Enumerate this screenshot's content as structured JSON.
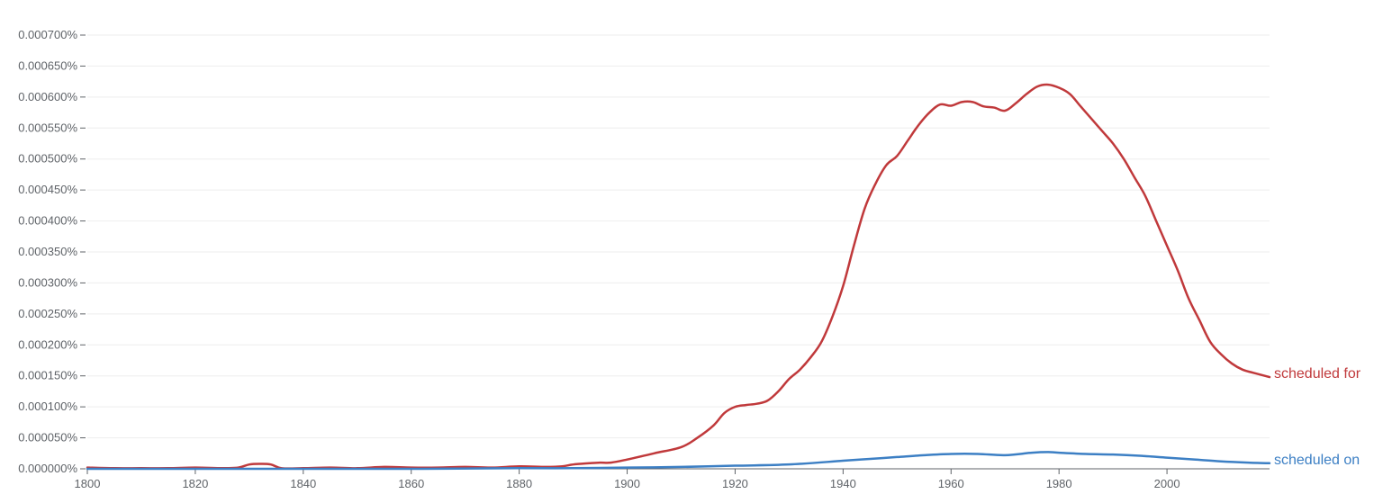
{
  "chart_data": {
    "type": "line",
    "title": "",
    "xlabel": "",
    "ylabel": "",
    "xlim": [
      1800,
      2019
    ],
    "ylim": [
      0,
      0.0007
    ],
    "grid": true,
    "x_ticks": [
      1800,
      1820,
      1840,
      1860,
      1880,
      1900,
      1920,
      1940,
      1960,
      1980,
      2000
    ],
    "x_tick_labels": [
      "1800",
      "1820",
      "1840",
      "1860",
      "1880",
      "1900",
      "1920",
      "1940",
      "1960",
      "1980",
      "2000"
    ],
    "y_ticks": [
      0,
      5e-05,
      0.0001,
      0.00015,
      0.0002,
      0.00025,
      0.0003,
      0.00035,
      0.0004,
      0.00045,
      0.0005,
      0.00055,
      0.0006,
      0.00065,
      0.0007
    ],
    "y_tick_labels": [
      "0.000000%",
      "0.000050%",
      "0.000100%",
      "0.000150%",
      "0.000200%",
      "0.000250%",
      "0.000300%",
      "0.000350%",
      "0.000400%",
      "0.000450%",
      "0.000500%",
      "0.000550%",
      "0.000600%",
      "0.000650%",
      "0.000700%"
    ],
    "series": [
      {
        "name": "scheduled for",
        "color": "#c0393b",
        "points": [
          [
            1800,
            2e-06
          ],
          [
            1805,
            1e-06
          ],
          [
            1810,
            1e-06
          ],
          [
            1815,
            1e-06
          ],
          [
            1820,
            2e-06
          ],
          [
            1825,
            1e-06
          ],
          [
            1828,
            2e-06
          ],
          [
            1830,
            7e-06
          ],
          [
            1832,
            8e-06
          ],
          [
            1834,
            7e-06
          ],
          [
            1836,
            1e-06
          ],
          [
            1840,
            1e-06
          ],
          [
            1845,
            2e-06
          ],
          [
            1850,
            1e-06
          ],
          [
            1855,
            3e-06
          ],
          [
            1860,
            2e-06
          ],
          [
            1865,
            2e-06
          ],
          [
            1870,
            3e-06
          ],
          [
            1875,
            2e-06
          ],
          [
            1880,
            4e-06
          ],
          [
            1885,
            3e-06
          ],
          [
            1888,
            4e-06
          ],
          [
            1890,
            7e-06
          ],
          [
            1893,
            9e-06
          ],
          [
            1895,
            1e-05
          ],
          [
            1897,
            1e-05
          ],
          [
            1900,
            1.5e-05
          ],
          [
            1905,
            2.5e-05
          ],
          [
            1910,
            3.5e-05
          ],
          [
            1913,
            5e-05
          ],
          [
            1916,
            7e-05
          ],
          [
            1918,
            9e-05
          ],
          [
            1920,
            0.0001
          ],
          [
            1922,
            0.000103
          ],
          [
            1924,
            0.000105
          ],
          [
            1926,
            0.00011
          ],
          [
            1928,
            0.000125
          ],
          [
            1930,
            0.000145
          ],
          [
            1932,
            0.00016
          ],
          [
            1934,
            0.00018
          ],
          [
            1936,
            0.000205
          ],
          [
            1938,
            0.000245
          ],
          [
            1940,
            0.000295
          ],
          [
            1942,
            0.00036
          ],
          [
            1944,
            0.00042
          ],
          [
            1946,
            0.00046
          ],
          [
            1948,
            0.00049
          ],
          [
            1950,
            0.000505
          ],
          [
            1952,
            0.00053
          ],
          [
            1954,
            0.000555
          ],
          [
            1956,
            0.000575
          ],
          [
            1958,
            0.000588
          ],
          [
            1960,
            0.000586
          ],
          [
            1962,
            0.000592
          ],
          [
            1964,
            0.000592
          ],
          [
            1966,
            0.000585
          ],
          [
            1968,
            0.000583
          ],
          [
            1970,
            0.000578
          ],
          [
            1972,
            0.00059
          ],
          [
            1974,
            0.000605
          ],
          [
            1976,
            0.000617
          ],
          [
            1978,
            0.00062
          ],
          [
            1980,
            0.000615
          ],
          [
            1982,
            0.000605
          ],
          [
            1984,
            0.000585
          ],
          [
            1986,
            0.000565
          ],
          [
            1988,
            0.000545
          ],
          [
            1990,
            0.000525
          ],
          [
            1992,
            0.0005
          ],
          [
            1994,
            0.00047
          ],
          [
            1996,
            0.00044
          ],
          [
            1998,
            0.0004
          ],
          [
            2000,
            0.00036
          ],
          [
            2002,
            0.00032
          ],
          [
            2004,
            0.000275
          ],
          [
            2006,
            0.00024
          ],
          [
            2008,
            0.000205
          ],
          [
            2010,
            0.000185
          ],
          [
            2012,
            0.00017
          ],
          [
            2014,
            0.00016
          ],
          [
            2016,
            0.000155
          ],
          [
            2019,
            0.000148
          ]
        ]
      },
      {
        "name": "scheduled on",
        "color": "#3c7fc4",
        "points": [
          [
            1800,
            0.0
          ],
          [
            1820,
            0.0
          ],
          [
            1840,
            0.0
          ],
          [
            1860,
            0.0
          ],
          [
            1880,
            1e-06
          ],
          [
            1890,
            1e-06
          ],
          [
            1900,
            2e-06
          ],
          [
            1910,
            3e-06
          ],
          [
            1920,
            5e-06
          ],
          [
            1930,
            7e-06
          ],
          [
            1940,
            1.3e-05
          ],
          [
            1945,
            1.6e-05
          ],
          [
            1950,
            1.9e-05
          ],
          [
            1955,
            2.2e-05
          ],
          [
            1960,
            2.4e-05
          ],
          [
            1965,
            2.4e-05
          ],
          [
            1970,
            2.2e-05
          ],
          [
            1975,
            2.6e-05
          ],
          [
            1978,
            2.7e-05
          ],
          [
            1980,
            2.6e-05
          ],
          [
            1985,
            2.4e-05
          ],
          [
            1990,
            2.3e-05
          ],
          [
            1995,
            2.1e-05
          ],
          [
            2000,
            1.8e-05
          ],
          [
            2005,
            1.5e-05
          ],
          [
            2010,
            1.2e-05
          ],
          [
            2015,
            1e-05
          ],
          [
            2019,
            9e-06
          ]
        ]
      }
    ]
  }
}
